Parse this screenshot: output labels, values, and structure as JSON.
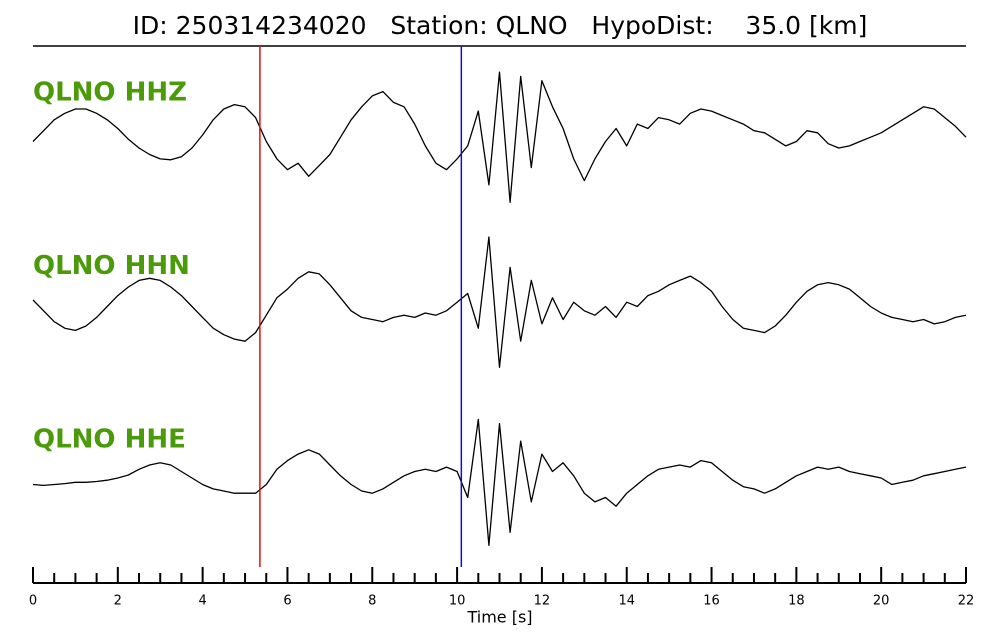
{
  "chart_data": {
    "type": "line",
    "title": "ID: 250314234020   Station: QLNO   HypoDist:    35.0 [km]",
    "xlabel": "Time [s]",
    "xlim": [
      0,
      22
    ],
    "xticks": [
      0,
      2,
      4,
      6,
      8,
      10,
      12,
      14,
      16,
      18,
      20,
      22
    ],
    "minor_ticks_per_major": 4,
    "ylim": [
      -2,
      2
    ],
    "label_color": "#4a9a0a",
    "picks": [
      {
        "x": 5.35,
        "color": "#e01010"
      },
      {
        "x": 10.1,
        "color": "#1010d0"
      }
    ],
    "x": [
      0,
      0.25,
      0.5,
      0.75,
      1,
      1.25,
      1.5,
      1.75,
      2,
      2.25,
      2.5,
      2.75,
      3,
      3.25,
      3.5,
      3.75,
      4,
      4.25,
      4.5,
      4.75,
      5,
      5.25,
      5.5,
      5.75,
      6,
      6.25,
      6.5,
      6.75,
      7,
      7.25,
      7.5,
      7.75,
      8,
      8.25,
      8.5,
      8.75,
      9,
      9.25,
      9.5,
      9.75,
      10,
      10.25,
      10.5,
      10.75,
      11,
      11.25,
      11.5,
      11.75,
      12,
      12.25,
      12.5,
      12.75,
      13,
      13.25,
      13.5,
      13.75,
      14,
      14.25,
      14.5,
      14.75,
      15,
      15.25,
      15.5,
      15.75,
      16,
      16.25,
      16.5,
      16.75,
      17,
      17.25,
      17.5,
      17.75,
      18,
      18.25,
      18.5,
      18.75,
      19,
      19.25,
      19.5,
      19.75,
      20,
      20.25,
      20.5,
      20.75,
      21,
      21.25,
      21.5,
      21.75,
      22
    ],
    "series": [
      {
        "name": "QLNO HHZ",
        "color": "#000000",
        "values": [
          -0.2,
          0.05,
          0.3,
          0.45,
          0.55,
          0.55,
          0.45,
          0.3,
          0.1,
          -0.15,
          -0.35,
          -0.5,
          -0.6,
          -0.62,
          -0.55,
          -0.35,
          -0.05,
          0.3,
          0.55,
          0.65,
          0.6,
          0.35,
          -0.2,
          -0.6,
          -0.85,
          -0.7,
          -1.0,
          -0.75,
          -0.5,
          -0.1,
          0.3,
          0.6,
          0.85,
          0.95,
          0.7,
          0.6,
          0.2,
          -0.3,
          -0.7,
          -0.85,
          -0.6,
          -0.3,
          0.5,
          -1.2,
          1.4,
          -1.6,
          1.3,
          -0.8,
          1.2,
          0.6,
          0.1,
          -0.6,
          -1.1,
          -0.6,
          -0.2,
          0.1,
          -0.3,
          0.2,
          0.1,
          0.35,
          0.3,
          0.2,
          0.45,
          0.55,
          0.5,
          0.4,
          0.3,
          0.2,
          0.05,
          0.0,
          -0.15,
          -0.3,
          -0.2,
          0.05,
          0.0,
          -0.25,
          -0.35,
          -0.3,
          -0.2,
          -0.1,
          0.0,
          0.15,
          0.3,
          0.45,
          0.6,
          0.55,
          0.35,
          0.15,
          -0.1
        ]
      },
      {
        "name": "QLNO HHN",
        "color": "#000000",
        "values": [
          0.15,
          -0.1,
          -0.35,
          -0.5,
          -0.55,
          -0.45,
          -0.25,
          0.0,
          0.25,
          0.45,
          0.6,
          0.65,
          0.6,
          0.45,
          0.25,
          0.0,
          -0.25,
          -0.5,
          -0.65,
          -0.75,
          -0.8,
          -0.6,
          -0.2,
          0.2,
          0.4,
          0.65,
          0.8,
          0.75,
          0.5,
          0.2,
          -0.1,
          -0.25,
          -0.3,
          -0.35,
          -0.25,
          -0.2,
          -0.25,
          -0.15,
          -0.2,
          -0.1,
          0.1,
          0.3,
          -0.5,
          1.6,
          -1.4,
          0.9,
          -0.8,
          0.6,
          -0.4,
          0.2,
          -0.3,
          0.1,
          -0.1,
          -0.2,
          0.0,
          -0.25,
          0.1,
          0.0,
          0.25,
          0.35,
          0.5,
          0.6,
          0.7,
          0.55,
          0.35,
          0.0,
          -0.3,
          -0.5,
          -0.55,
          -0.6,
          -0.45,
          -0.2,
          0.1,
          0.35,
          0.5,
          0.55,
          0.5,
          0.4,
          0.2,
          0.0,
          -0.15,
          -0.25,
          -0.3,
          -0.35,
          -0.3,
          -0.4,
          -0.35,
          -0.25,
          -0.2
        ]
      },
      {
        "name": "QLNO HHE",
        "color": "#000000",
        "values": [
          -0.1,
          -0.12,
          -0.1,
          -0.08,
          -0.05,
          -0.05,
          -0.03,
          0.0,
          0.05,
          0.12,
          0.25,
          0.35,
          0.4,
          0.35,
          0.2,
          0.05,
          -0.1,
          -0.2,
          -0.25,
          -0.3,
          -0.3,
          -0.3,
          -0.1,
          0.25,
          0.45,
          0.6,
          0.7,
          0.6,
          0.35,
          0.1,
          -0.1,
          -0.25,
          -0.3,
          -0.2,
          -0.05,
          0.1,
          0.2,
          0.25,
          0.2,
          0.3,
          0.2,
          -0.4,
          1.4,
          -1.5,
          1.3,
          -1.2,
          0.9,
          -0.5,
          0.6,
          0.2,
          0.4,
          0.1,
          -0.3,
          -0.5,
          -0.4,
          -0.6,
          -0.3,
          -0.1,
          0.1,
          0.25,
          0.3,
          0.35,
          0.3,
          0.45,
          0.4,
          0.2,
          0.0,
          -0.15,
          -0.2,
          -0.3,
          -0.2,
          -0.05,
          0.1,
          0.2,
          0.3,
          0.25,
          0.3,
          0.2,
          0.15,
          0.1,
          0.05,
          -0.1,
          -0.05,
          0.0,
          0.1,
          0.15,
          0.2,
          0.25,
          0.3
        ]
      }
    ]
  }
}
